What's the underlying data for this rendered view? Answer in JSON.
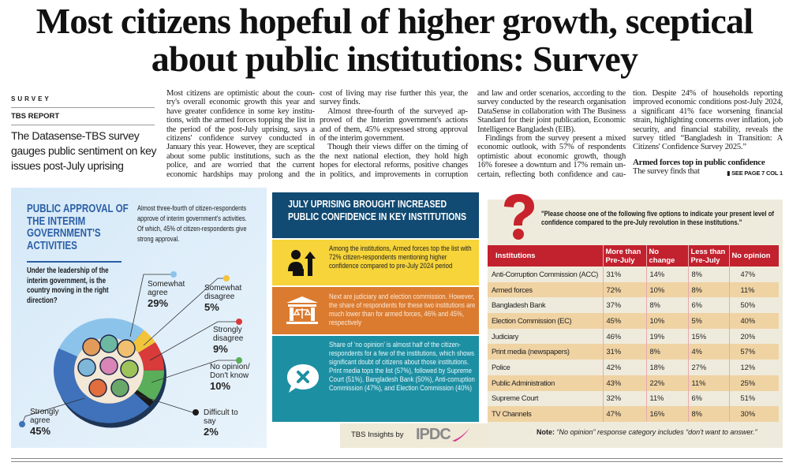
{
  "headline": {
    "line1": "Most citizens hopeful of higher growth, sceptical",
    "line2": "about public institutions: Survey"
  },
  "kicker": "SURVEY",
  "byline": "TBS REPORT",
  "deck": "The Datasense-TBS survey gauges public sentiment on key issues post-July uprising",
  "body": {
    "col1": [
      "Most citizens are optimistic about the coun­try's overall economic growth this year and have greater confidence in some key institu­tions, with the armed forces topping the list in the period of the post-July uprising, says a citizens' confidence survey conducted in January this year. However, they are scepti­cal about some public institutions, such as the police, and are worried that the current economic hardships may prolong and the"
    ],
    "col2": [
      "cost of living may rise further this year, the survey finds.",
      "Almost three-fourth of the surveyed ap­proved of the Interim government's actions and of them, 45% expressed strong approval of the interim government.",
      "Though their views differ on the timing of the next national election, they hold high hopes for electoral reforms, positive changes in politics, and improvements in corruption"
    ],
    "col3": [
      "and law and order scenarios, according to the survey conducted by the research organisation DataSense in collaboration with The Business Standard for their joint publication, Economic Intelligence Bangladesh (EIB).",
      "Findings from the survey present a mixed economic outlook, with 57% of respondents optimistic about economic growth, though 16% foresee a downturn and 17% remain un­certain, reflecting both confidence and cau-"
    ],
    "col4": [
      "tion. Despite 24% of households reporting improved economic conditions post-July 2024, a significant 41% face worsening financial strain, highlighting concerns over inflation, job security, and financial stability, reveals the survey titled “Bangladesh in Transition: A Citizens' Confidence Survey 2025.”"
    ],
    "subhead": "Armed forces top in public confidence",
    "last_line": "The survey finds that",
    "jump": "SEE PAGE 7 COL 1"
  },
  "approval": {
    "title": "PUBLIC APPROVAL OF THE INTERIM GOVERNMENT'S ACTIVITIES",
    "intro": "Almost three-fourth of citizen-respondents approve of interim government's activities. Of which, 45% of citizen-respondents give strong approval.",
    "question": "Under the leadership of the interim government, is the country moving in the right direction?"
  },
  "chart_data": {
    "type": "pie",
    "style": "donut",
    "categories": [
      "Somewhat agree",
      "Somewhat disagree",
      "Strongly disagree",
      "No opinion/ Don't know",
      "Difficult to say",
      "Strongly agree"
    ],
    "values": [
      29,
      5,
      9,
      10,
      2,
      45
    ],
    "labels": [
      "29%",
      "5%",
      "9%",
      "10%",
      "2%",
      "45%"
    ],
    "colors": [
      "#8cc3ea",
      "#f2c43c",
      "#d93a3a",
      "#5aae5a",
      "#1a1a1a",
      "#3f72bb"
    ]
  },
  "institutions": {
    "title": "JULY UPRISING BROUGHT INCREASED PUBLIC CONFIDENCE IN KEY INSTITUTIONS",
    "boxes": [
      {
        "icon": "person-growth-icon",
        "text": "Among the institutions, Armed forces top the list with 72% citizen-respondents mentioning higher confidence compared to pre-July 2024 period"
      },
      {
        "icon": "courthouse-scales-icon",
        "text": "Next are judiciary and election commission. However, the share of respondents for these two institutions are much lower than for armed forces, 46% and 45%, respectively"
      },
      {
        "icon": "speech-bubble-x-icon",
        "text": "Share of ‘no opinion’ is almost half of the citizen-respondents for a few of the institutions, which shows significant doubt of citizens about those institutions. Print media tops the list (57%), followed by Supreme Court (51%), Bangladesh Bank (50%), Anti-corruption Commission (47%), and Election Commission (40%)"
      }
    ],
    "credit": "TBS Insights by",
    "sponsor": "IPDC"
  },
  "table": {
    "question": "\"Please choose one of the following five options to indicate your present level of confidence compared to the pre-July revolution in these institutions.\"",
    "headers": [
      "Institutions",
      "More than Pre-July",
      "No change",
      "Less than Pre-July",
      "No opinion"
    ],
    "rows": [
      [
        "Anti-Corruption Commission (ACC)",
        "31%",
        "14%",
        "8%",
        "47%"
      ],
      [
        "Armed forces",
        "72%",
        "10%",
        "8%",
        "11%"
      ],
      [
        "Bangladesh Bank",
        "37%",
        "8%",
        "6%",
        "50%"
      ],
      [
        "Election Commission (EC)",
        "45%",
        "10%",
        "5%",
        "40%"
      ],
      [
        "Judiciary",
        "46%",
        "19%",
        "15%",
        "20%"
      ],
      [
        "Print media (newspapers)",
        "31%",
        "8%",
        "4%",
        "57%"
      ],
      [
        "Police",
        "42%",
        "18%",
        "27%",
        "12%"
      ],
      [
        "Public Administration",
        "43%",
        "22%",
        "11%",
        "25%"
      ],
      [
        "Supreme Court",
        "32%",
        "11%",
        "6%",
        "51%"
      ],
      [
        "TV Channels",
        "47%",
        "16%",
        "8%",
        "30%"
      ]
    ],
    "note_label": "Note:",
    "note": "“No opinion” response category includes “don't want to answer.”"
  },
  "colors": {
    "accent_red": "#c2212e",
    "navy": "#114a72",
    "yellow": "#f6d43a",
    "orange": "#db7b2f",
    "teal": "#1d8fa3"
  }
}
